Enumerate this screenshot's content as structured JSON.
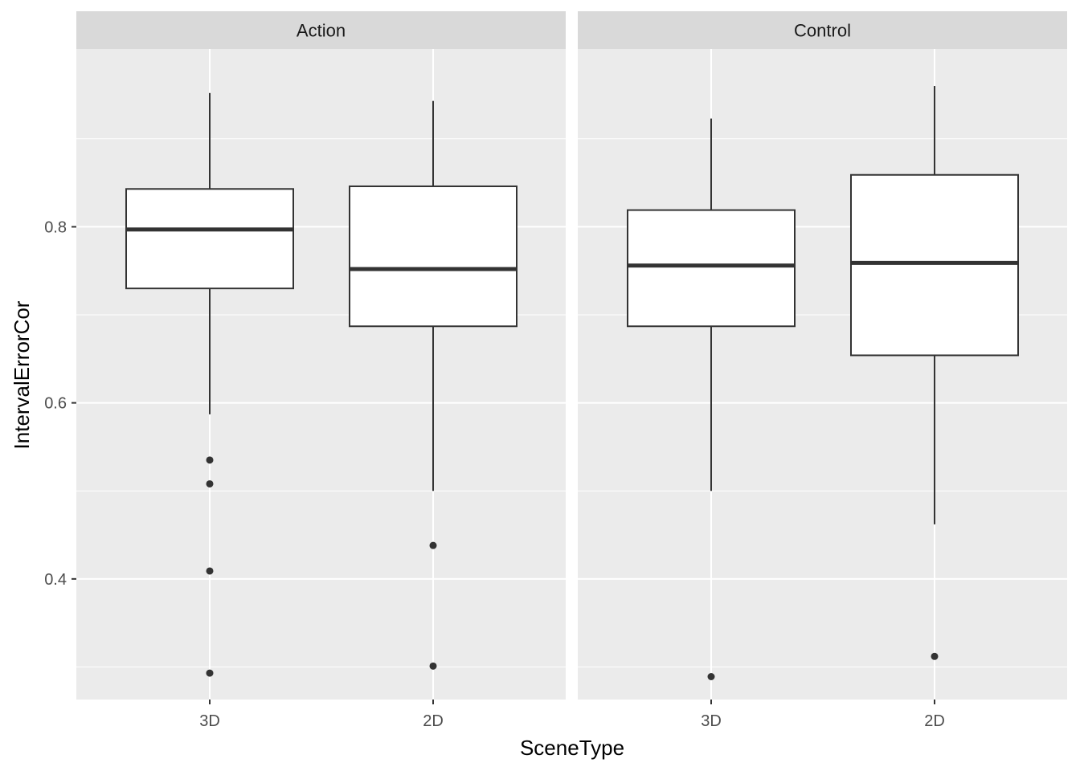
{
  "chart_data": {
    "type": "boxplot",
    "xlabel": "SceneType",
    "ylabel": "IntervalErrorCor",
    "ylim": [
      0.263,
      1.002
    ],
    "y_ticks": [
      0.4,
      0.6,
      0.8
    ],
    "y_tick_labels": [
      "0.4",
      "0.6",
      "0.8"
    ],
    "categories": [
      "3D",
      "2D"
    ],
    "facets": [
      {
        "label": "Action",
        "boxes": [
          {
            "category": "3D",
            "whisker_low": 0.587,
            "q1": 0.73,
            "median": 0.797,
            "q3": 0.843,
            "whisker_high": 0.952,
            "outliers": [
              0.535,
              0.508,
              0.409,
              0.293
            ]
          },
          {
            "category": "2D",
            "whisker_low": 0.5,
            "q1": 0.687,
            "median": 0.752,
            "q3": 0.846,
            "whisker_high": 0.943,
            "outliers": [
              0.438,
              0.301
            ]
          }
        ]
      },
      {
        "label": "Control",
        "boxes": [
          {
            "category": "3D",
            "whisker_low": 0.5,
            "q1": 0.687,
            "median": 0.756,
            "q3": 0.819,
            "whisker_high": 0.923,
            "outliers": [
              0.289
            ]
          },
          {
            "category": "2D",
            "whisker_low": 0.462,
            "q1": 0.654,
            "median": 0.759,
            "q3": 0.859,
            "whisker_high": 0.96,
            "outliers": [
              0.312
            ]
          }
        ]
      }
    ],
    "grid": true,
    "legend": "none"
  }
}
